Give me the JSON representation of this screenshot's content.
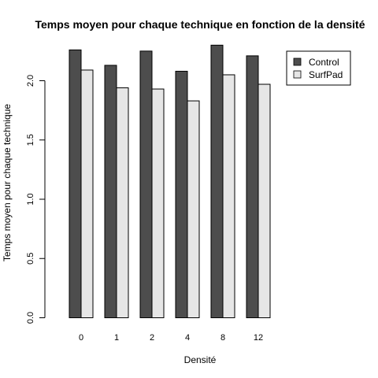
{
  "chart_data": {
    "type": "bar",
    "title": "Temps moyen pour chaque technique en fonction de la densité",
    "xlabel": "Densité",
    "ylabel": "Temps moyen pour chaque technique",
    "categories": [
      "0",
      "1",
      "2",
      "4",
      "8",
      "12"
    ],
    "series": [
      {
        "name": "Control",
        "values": [
          2.26,
          2.13,
          2.25,
          2.08,
          2.3,
          2.21
        ],
        "color": "#4d4d4d"
      },
      {
        "name": "SurfPad",
        "values": [
          2.09,
          1.94,
          1.93,
          1.83,
          2.05,
          1.97
        ],
        "color": "#e6e6e6"
      }
    ],
    "ylim": [
      0,
      2.3
    ],
    "yticks": [
      "0.0",
      "0.5",
      "1.0",
      "1.5",
      "2.0"
    ],
    "grid": false,
    "legend_position": "top-right"
  }
}
